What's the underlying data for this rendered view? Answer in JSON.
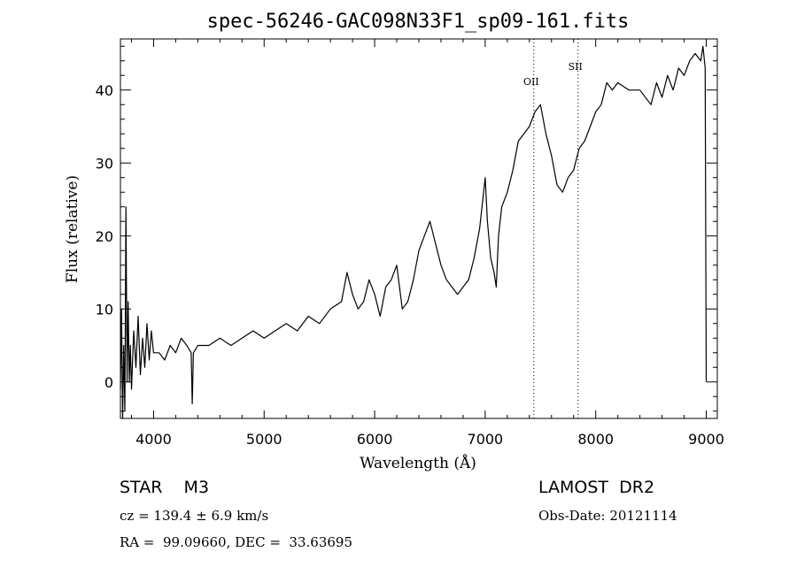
{
  "chart_data": {
    "type": "line",
    "title": "spec-56246-GAC098N33F1_sp09-161.fits",
    "xlabel": "Wavelength (Å)",
    "ylabel": "Flux (relative)",
    "xlim": [
      3700,
      9100
    ],
    "ylim": [
      -5,
      47
    ],
    "x_ticks": [
      4000,
      5000,
      6000,
      7000,
      8000,
      9000
    ],
    "y_ticks": [
      0,
      10,
      20,
      30,
      40
    ],
    "grid": false,
    "series": [
      {
        "x": [
          3700,
          3710,
          3720,
          3730,
          3740,
          3750,
          3760,
          3770,
          3780,
          3790,
          3800,
          3820,
          3840,
          3860,
          3880,
          3900,
          3920,
          3940,
          3960,
          3980,
          4000,
          4050,
          4100,
          4150,
          4200,
          4250,
          4300,
          4340,
          4350,
          4360,
          4400,
          4500,
          4600,
          4700,
          4800,
          4900,
          5000,
          5100,
          5200,
          5300,
          5400,
          5500,
          5600,
          5700,
          5750,
          5800,
          5850,
          5900,
          5950,
          6000,
          6050,
          6100,
          6150,
          6200,
          6250,
          6300,
          6350,
          6400,
          6450,
          6500,
          6550,
          6600,
          6650,
          6700,
          6750,
          6800,
          6850,
          6900,
          6950,
          7000,
          7020,
          7050,
          7080,
          7100,
          7120,
          7150,
          7200,
          7250,
          7300,
          7350,
          7400,
          7450,
          7500,
          7550,
          7600,
          7650,
          7700,
          7750,
          7800,
          7850,
          7900,
          7950,
          8000,
          8050,
          8100,
          8150,
          8200,
          8300,
          8400,
          8500,
          8550,
          8600,
          8650,
          8700,
          8750,
          8800,
          8850,
          8900,
          8950,
          8970,
          8990,
          9000
        ],
        "y": [
          -1,
          10,
          -5,
          5,
          -4,
          24,
          0,
          11,
          0,
          5,
          -1,
          7,
          2,
          9,
          1,
          6,
          2,
          8,
          3,
          7,
          4,
          4,
          3,
          5,
          4,
          6,
          5,
          4,
          -3,
          4,
          5,
          5,
          6,
          5,
          6,
          7,
          6,
          7,
          8,
          7,
          9,
          8,
          10,
          11,
          15,
          12,
          10,
          11,
          14,
          12,
          9,
          13,
          14,
          16,
          10,
          11,
          14,
          18,
          20,
          22,
          19,
          16,
          14,
          13,
          12,
          13,
          14,
          17,
          21,
          28,
          22,
          17,
          15,
          13,
          20,
          24,
          26,
          29,
          33,
          34,
          35,
          37,
          38,
          34,
          31,
          27,
          26,
          28,
          29,
          32,
          33,
          35,
          37,
          38,
          41,
          40,
          41,
          40,
          40,
          38,
          41,
          39,
          42,
          40,
          43,
          42,
          44,
          45,
          44,
          46,
          43,
          0
        ],
        "color": "#000000"
      }
    ],
    "reference_lines": [
      {
        "x": 7440,
        "label": "OII",
        "style": "dotted"
      },
      {
        "x": 7840,
        "label": "SII",
        "style": "dotted"
      }
    ]
  },
  "info": {
    "class_text": "STAR    M3",
    "survey_text": "LAMOST  DR2",
    "cz_text": "cz = 139.4 ± 6.9 km/s",
    "obs_date_text": "Obs-Date: 20121114",
    "coords_text": "RA =  99.09660, DEC =  33.63695"
  }
}
